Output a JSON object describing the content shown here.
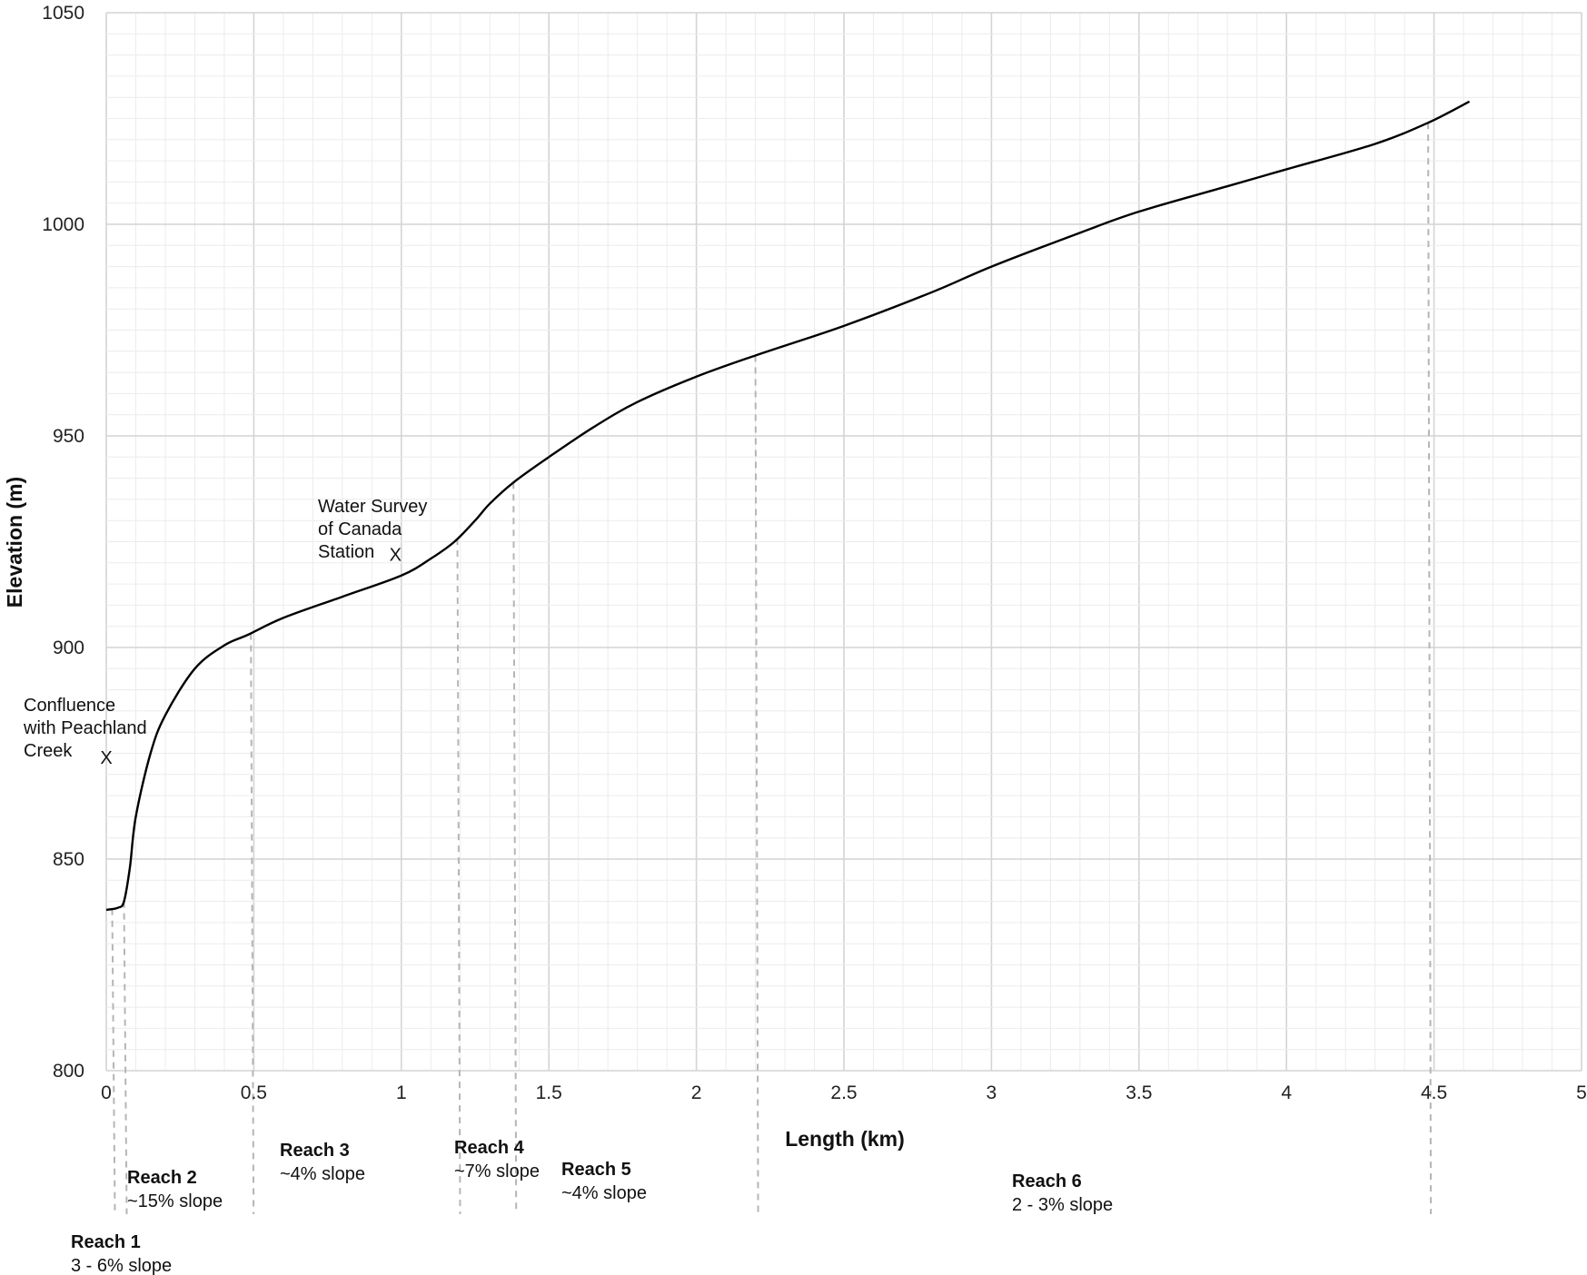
{
  "chart_data": {
    "type": "line",
    "xlabel": "Length (km)",
    "ylabel": "Elevation (m)",
    "xlim": [
      0,
      5
    ],
    "ylim": [
      800,
      1050
    ],
    "x_ticks": [
      "0",
      "0.5",
      "1",
      "1.5",
      "2",
      "2.5",
      "3",
      "3.5",
      "4",
      "4.5",
      "5"
    ],
    "y_ticks": [
      "800",
      "850",
      "900",
      "950",
      "1000",
      "1050"
    ],
    "grid": true,
    "series": [
      {
        "x": [
          0.0,
          0.04,
          0.06,
          0.08,
          0.1,
          0.15,
          0.2,
          0.3,
          0.4,
          0.48,
          0.6,
          0.8,
          1.0,
          1.1,
          1.18,
          1.25,
          1.3,
          1.38,
          1.5,
          1.65,
          1.8,
          2.0,
          2.2,
          2.5,
          2.8,
          3.0,
          3.3,
          3.5,
          3.8,
          4.0,
          4.3,
          4.48,
          4.62
        ],
        "y": [
          838,
          838.5,
          840,
          848,
          860,
          875,
          884,
          895,
          900.5,
          903,
          907,
          912,
          917,
          921,
          925,
          930,
          934,
          939,
          945,
          952,
          958,
          964,
          969,
          976,
          984,
          990,
          998,
          1003,
          1009,
          1013,
          1019,
          1024,
          1029
        ]
      }
    ],
    "reach_boundaries_km": [
      0.02,
      0.06,
      0.49,
      1.19,
      1.38,
      2.2,
      4.48
    ],
    "reaches": [
      {
        "name": "Reach 1",
        "slope": "3 - 6% slope"
      },
      {
        "name": "Reach 2",
        "slope": "~15% slope"
      },
      {
        "name": "Reach 3",
        "slope": "~4% slope"
      },
      {
        "name": "Reach 4",
        "slope": "~7% slope"
      },
      {
        "name": "Reach 5",
        "slope": "~4% slope"
      },
      {
        "name": "Reach 6",
        "slope": "2 - 3% slope"
      }
    ],
    "annotations": [
      {
        "lines": [
          "Confluence",
          "with Peachland",
          "Creek"
        ],
        "marker": "X",
        "x": 0.0,
        "y": 874
      },
      {
        "lines": [
          "Water Survey",
          "of Canada",
          "Station"
        ],
        "marker": "X",
        "x": 0.98,
        "y": 922
      }
    ]
  }
}
